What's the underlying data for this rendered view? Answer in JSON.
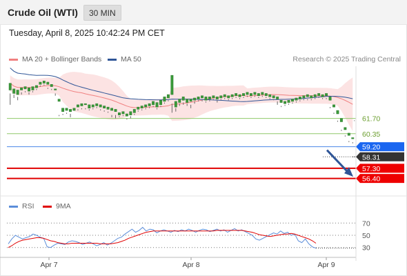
{
  "header": {
    "title": "Crude Oil (WTI)",
    "interval": "30 MIN"
  },
  "timestamp": "Tuesday, April 8, 2025 10:42:24 PM CET",
  "legend": {
    "ma20": {
      "label": "MA 20 + Bollinger Bands",
      "color": "#f08080"
    },
    "ma50": {
      "label": "MA 50",
      "color": "#2f5597"
    }
  },
  "credit": "Research © 2025 Trading Central",
  "rsi_legend": {
    "rsi": {
      "label": "RSI",
      "color": "#5b8dd9"
    },
    "ma9": {
      "label": "9MA",
      "color": "#e00000"
    }
  },
  "chart_data": [
    {
      "type": "candlestick",
      "ylim": [
        55.1,
        66.3
      ],
      "candles": [
        [
          64.2,
          64.8,
          63.9,
          62.9
        ],
        [
          63.9,
          64.3,
          63.8,
          63.5
        ],
        [
          63.8,
          64.2,
          63.6,
          63.3
        ],
        [
          64.2,
          64.4,
          64.0,
          63.8
        ],
        [
          64.3,
          64.5,
          64.1,
          64.0
        ],
        [
          64.1,
          64.4,
          64.0,
          63.8
        ],
        [
          64.2,
          64.5,
          64.1,
          64.0
        ],
        [
          64.4,
          64.6,
          64.3,
          64.2
        ],
        [
          64.7,
          64.9,
          64.6,
          64.5
        ],
        [
          64.8,
          65.0,
          64.7,
          64.6
        ],
        [
          64.7,
          64.9,
          64.4,
          64.3
        ],
        [
          64.5,
          64.7,
          64.3,
          64.2
        ],
        [
          64.2,
          64.3,
          63.9,
          63.7
        ],
        [
          63.2,
          63.4,
          62.0,
          61.9
        ],
        [
          62.3,
          62.6,
          62.1,
          62.0
        ],
        [
          62.4,
          62.6,
          62.2,
          62.1
        ],
        [
          62.3,
          62.5,
          62.1,
          61.8
        ],
        [
          62.4,
          62.6,
          62.2,
          62.2
        ],
        [
          62.7,
          62.9,
          62.5,
          62.4
        ],
        [
          62.8,
          63.0,
          62.6,
          62.5
        ],
        [
          62.9,
          63.0,
          62.6,
          62.5
        ],
        [
          62.6,
          62.9,
          62.5,
          62.4
        ],
        [
          62.7,
          62.9,
          62.6,
          62.5
        ],
        [
          62.8,
          63.0,
          62.7,
          62.6
        ],
        [
          62.7,
          62.9,
          62.5,
          62.4
        ],
        [
          62.6,
          62.8,
          62.4,
          62.3
        ],
        [
          62.5,
          62.7,
          62.3,
          62.2
        ],
        [
          62.4,
          62.6,
          62.0,
          61.8
        ],
        [
          62.3,
          62.5,
          62.0,
          61.7
        ],
        [
          62.0,
          62.2,
          61.9,
          61.8
        ],
        [
          62.1,
          62.3,
          62.0,
          61.9
        ],
        [
          61.9,
          62.1,
          61.7,
          61.6
        ],
        [
          62.0,
          62.3,
          61.9,
          61.7
        ],
        [
          62.2,
          62.5,
          62.1,
          62.0
        ],
        [
          62.5,
          62.7,
          62.4,
          62.3
        ],
        [
          62.6,
          62.8,
          62.5,
          62.4
        ],
        [
          62.7,
          62.9,
          62.6,
          62.5
        ],
        [
          62.8,
          63.0,
          62.7,
          62.6
        ],
        [
          62.9,
          63.2,
          62.8,
          62.7
        ],
        [
          62.7,
          63.1,
          62.6,
          62.5
        ],
        [
          62.9,
          63.3,
          62.8,
          62.7
        ],
        [
          63.2,
          63.6,
          63.1,
          63.0
        ],
        [
          63.5,
          63.8,
          63.3,
          63.2
        ],
        [
          63.8,
          65.5,
          63.0,
          62.2
        ],
        [
          62.7,
          63.2,
          62.6,
          62.3
        ],
        [
          63.1,
          63.4,
          63.0,
          62.8
        ],
        [
          63.3,
          63.6,
          63.1,
          62.9
        ],
        [
          63.1,
          63.4,
          63.0,
          62.8
        ],
        [
          63.2,
          63.4,
          62.9,
          62.6
        ],
        [
          63.3,
          63.5,
          63.2,
          63.0
        ],
        [
          63.4,
          63.6,
          63.3,
          63.2
        ],
        [
          63.5,
          63.7,
          63.3,
          63.2
        ],
        [
          63.3,
          63.6,
          63.2,
          63.1
        ],
        [
          63.4,
          63.6,
          63.3,
          63.2
        ],
        [
          63.5,
          63.7,
          63.4,
          63.3
        ],
        [
          63.4,
          63.6,
          63.3,
          63.1
        ],
        [
          63.5,
          63.7,
          63.4,
          63.3
        ],
        [
          63.6,
          63.8,
          63.5,
          63.4
        ],
        [
          63.5,
          63.7,
          63.4,
          63.3
        ],
        [
          63.6,
          63.8,
          63.5,
          63.4
        ],
        [
          63.7,
          63.9,
          63.6,
          63.5
        ],
        [
          63.6,
          63.8,
          63.5,
          63.4
        ],
        [
          63.7,
          63.9,
          63.6,
          63.5
        ],
        [
          63.8,
          64.0,
          63.7,
          63.6
        ],
        [
          63.7,
          63.9,
          63.6,
          63.5
        ],
        [
          63.8,
          64.0,
          63.7,
          63.6
        ],
        [
          63.7,
          63.9,
          63.6,
          63.5
        ],
        [
          63.8,
          64.0,
          63.7,
          63.6
        ],
        [
          63.7,
          63.9,
          63.6,
          63.5
        ],
        [
          63.6,
          63.8,
          63.5,
          63.4
        ],
        [
          63.5,
          63.7,
          63.4,
          63.3
        ],
        [
          63.4,
          63.6,
          63.2,
          62.9
        ],
        [
          63.1,
          63.3,
          62.8,
          62.7
        ],
        [
          63.0,
          63.2,
          62.9,
          62.8
        ],
        [
          63.1,
          63.3,
          63.0,
          62.9
        ],
        [
          63.2,
          63.4,
          63.1,
          63.0
        ],
        [
          63.3,
          63.5,
          63.2,
          63.1
        ],
        [
          63.4,
          63.6,
          63.3,
          63.2
        ],
        [
          63.5,
          63.7,
          63.4,
          63.3
        ],
        [
          63.6,
          63.8,
          63.4,
          63.3
        ],
        [
          63.5,
          63.7,
          63.4,
          63.3
        ],
        [
          63.6,
          63.8,
          63.5,
          63.4
        ],
        [
          63.7,
          63.9,
          63.6,
          63.5
        ],
        [
          63.6,
          63.8,
          63.5,
          63.4
        ],
        [
          63.7,
          63.9,
          63.5,
          63.4
        ],
        [
          63.3,
          63.6,
          62.7,
          62.6
        ],
        [
          62.7,
          62.9,
          62.2,
          62.1
        ],
        [
          62.1,
          62.4,
          61.5,
          61.4
        ],
        [
          61.4,
          61.7,
          60.7,
          60.6
        ],
        [
          60.7,
          60.9,
          60.2,
          60.1
        ],
        [
          60.2,
          60.4,
          59.7,
          59.6
        ],
        [
          59.9,
          60.0,
          59.6,
          59.5
        ]
      ],
      "levels": [
        {
          "value": 61.7,
          "label": "61.70",
          "color": "#8fc96a",
          "text_color": "#6b9e2f"
        },
        {
          "value": 60.35,
          "label": "60.35",
          "color": "#8fc96a",
          "text_color": "#6b9e2f"
        },
        {
          "value": 59.2,
          "label": "59.20",
          "color": "#4a86e8",
          "tag_color": "#1a66f0"
        },
        {
          "value": 58.31,
          "label": "58.31",
          "color": "#333333",
          "tag_color": "#333333"
        },
        {
          "value": 57.3,
          "label": "57.30",
          "color": "#e00000",
          "tag_color": "#ee0000"
        },
        {
          "value": 56.4,
          "label": "56.40",
          "color": "#e00000",
          "tag_color": "#ee0000"
        }
      ],
      "last_price": 58.31,
      "projection": {
        "from": 58.9,
        "to": 56.8
      }
    },
    {
      "type": "line",
      "title": "RSI",
      "ylim": [
        15,
        85
      ],
      "yticks": [
        "70",
        "50",
        "30"
      ],
      "ytick_values": [
        70,
        50,
        30
      ],
      "xticks": [
        "Apr 7",
        "Apr 8",
        "Apr 9"
      ],
      "series": [
        {
          "name": "RSI",
          "color": "#5b8dd9",
          "values": [
            36,
            44,
            50,
            47,
            44,
            46,
            48,
            52,
            50,
            47,
            45,
            31,
            30,
            34,
            37,
            36,
            35,
            39,
            41,
            40,
            38,
            35,
            37,
            39,
            36,
            33,
            35,
            38,
            34,
            37,
            41,
            45,
            47,
            52,
            56,
            60,
            55,
            58,
            63,
            57,
            60,
            59,
            54,
            57,
            59,
            57,
            55,
            58,
            56,
            59,
            57,
            60,
            58,
            55,
            58,
            60,
            59,
            56,
            58,
            60,
            57,
            59,
            55,
            58,
            61,
            57,
            59,
            56,
            53,
            50,
            44,
            42,
            45,
            48,
            51,
            54,
            52,
            57,
            53,
            55,
            50,
            52,
            41,
            38,
            44,
            36,
            31,
            29
          ]
        },
        {
          "name": "9MA",
          "color": "#e00000",
          "values": [
            30,
            33,
            37,
            40,
            42,
            43,
            44,
            45,
            46,
            46,
            45,
            43,
            41,
            40,
            38,
            37,
            36,
            36,
            37,
            37,
            37,
            37,
            37,
            37,
            37,
            37,
            36,
            36,
            36,
            36,
            37,
            38,
            40,
            42,
            45,
            47,
            49,
            51,
            53,
            55,
            56,
            57,
            57,
            57,
            57,
            57,
            57,
            57,
            57,
            57,
            57,
            57,
            57,
            57,
            57,
            57,
            57,
            57,
            57,
            58,
            58,
            58,
            58,
            58,
            58,
            58,
            58,
            57,
            56,
            55,
            53,
            51,
            50,
            49,
            48,
            49,
            50,
            51,
            52,
            52,
            53,
            52,
            50,
            48,
            46,
            44,
            41,
            37
          ]
        }
      ]
    }
  ]
}
